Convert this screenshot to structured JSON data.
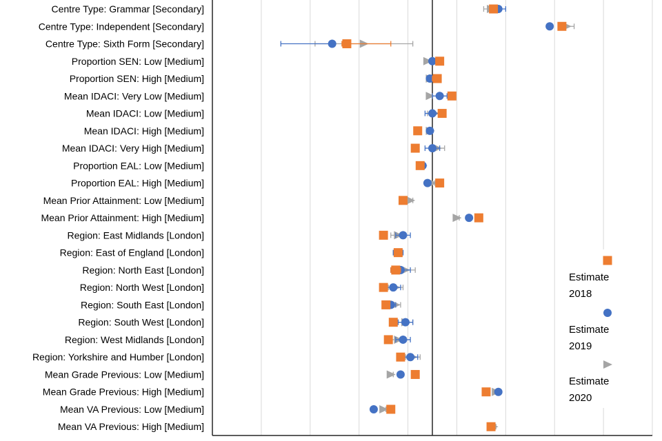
{
  "chart_data": {
    "type": "scatter",
    "orientation": "horizontal",
    "title": "",
    "xlabel": "",
    "ylabel": "",
    "xlim": [
      -0.09,
      0.09
    ],
    "grid": true,
    "reference_line_x": 0,
    "legend_position": "right",
    "categories": [
      "Centre Type: Grammar [Secondary]",
      "Centre Type: Independent [Secondary]",
      "Centre Type: Sixth Form [Secondary]",
      "Proportion SEN: Low [Medium]",
      "Proportion SEN: High [Medium]",
      "Mean IDACI: Very Low [Medium]",
      "Mean IDACI: Low [Medium]",
      "Mean IDACI: High [Medium]",
      "Mean IDACI: Very High [Medium]",
      "Proportion EAL: Low [Medium]",
      "Proportion EAL: High [Medium]",
      "Mean Prior Attainment: Low [Medium]",
      "Mean Prior Attainment: High [Medium]",
      "Region: East Midlands [London]",
      "Region: East of England [London]",
      "Region: North East [London]",
      "Region: North West [London]",
      "Region: South East [London]",
      "Region: South West [London]",
      "Region: West Midlands [London]",
      "Region: Yorkshire and Humber [London]",
      "Mean Grade Previous: Low [Medium]",
      "Mean Grade Previous: High [Medium]",
      "Mean VA Previous: Low [Medium]",
      "Mean VA Previous: High [Medium]"
    ],
    "series": [
      {
        "name": "Estimate 2018",
        "marker": "square",
        "color": "#ED7D31",
        "values": [
          0.025,
          0.053,
          -0.035,
          0.003,
          0.002,
          0.008,
          0.004,
          -0.006,
          -0.007,
          -0.005,
          0.003,
          -0.012,
          0.019,
          -0.02,
          -0.014,
          -0.015,
          -0.02,
          -0.019,
          -0.016,
          -0.018,
          -0.013,
          -0.007,
          0.022,
          -0.017,
          0.024
        ],
        "error_low": [
          0.0235,
          0.0515,
          -0.037,
          0.002,
          0.0,
          0.007,
          0.003,
          -0.007,
          -0.008,
          -0.006,
          0.002,
          -0.013,
          0.018,
          -0.0205,
          -0.015,
          -0.017,
          -0.021,
          -0.0195,
          -0.017,
          -0.019,
          -0.0135,
          -0.008,
          0.021,
          -0.018,
          0.023
        ],
        "error_high": [
          0.0265,
          0.0545,
          -0.017,
          0.004,
          0.003,
          0.009,
          0.005,
          -0.005,
          -0.006,
          -0.004,
          0.004,
          -0.011,
          0.02,
          -0.0195,
          -0.013,
          -0.013,
          -0.019,
          -0.0185,
          -0.015,
          -0.017,
          -0.0125,
          -0.006,
          0.023,
          -0.016,
          0.025
        ]
      },
      {
        "name": "Estimate 2019",
        "marker": "circle",
        "color": "#4472C4",
        "values": [
          0.027,
          0.048,
          -0.041,
          0.0,
          -0.001,
          0.003,
          0.0,
          -0.001,
          0.0,
          -0.004,
          -0.002,
          -0.012,
          0.015,
          -0.012,
          -0.014,
          -0.013,
          -0.016,
          -0.017,
          -0.011,
          -0.012,
          -0.009,
          -0.013,
          0.027,
          -0.024,
          0.024
        ],
        "error_low": [
          0.024,
          0.047,
          -0.062,
          -0.001,
          -0.002,
          0.0,
          -0.003,
          -0.002,
          -0.003,
          -0.005,
          -0.003,
          -0.013,
          0.014,
          -0.015,
          -0.016,
          -0.017,
          -0.019,
          -0.019,
          -0.014,
          -0.015,
          -0.012,
          -0.014,
          0.026,
          -0.025,
          0.023
        ],
        "error_high": [
          0.03,
          0.049,
          -0.04,
          0.001,
          0.0,
          0.006,
          0.003,
          0.0,
          0.003,
          -0.003,
          -0.001,
          -0.011,
          0.016,
          -0.009,
          -0.012,
          -0.009,
          -0.013,
          -0.015,
          -0.008,
          -0.009,
          -0.006,
          -0.012,
          0.028,
          -0.023,
          0.025
        ]
      },
      {
        "name": "Estimate 2020",
        "marker": "triangle",
        "color": "#A5A5A5",
        "values": [
          0.024,
          0.055,
          -0.028,
          -0.002,
          -0.001,
          -0.001,
          0.001,
          -0.001,
          0.002,
          -0.004,
          0.0,
          -0.009,
          0.01,
          -0.014,
          -0.014,
          -0.011,
          -0.015,
          -0.015,
          -0.011,
          -0.014,
          -0.008,
          -0.017,
          0.026,
          -0.02,
          0.025
        ],
        "error_low": [
          0.021,
          0.054,
          -0.048,
          -0.003,
          -0.002,
          -0.002,
          -0.002,
          -0.002,
          -0.001,
          -0.005,
          -0.001,
          -0.01,
          0.009,
          -0.017,
          -0.016,
          -0.015,
          -0.018,
          -0.017,
          -0.014,
          -0.017,
          -0.011,
          -0.018,
          0.025,
          -0.021,
          0.024
        ],
        "error_high": [
          0.027,
          0.058,
          -0.008,
          -0.001,
          0.0,
          0.0,
          0.004,
          0.0,
          0.005,
          -0.003,
          0.001,
          -0.008,
          0.011,
          -0.011,
          -0.012,
          -0.007,
          -0.012,
          -0.013,
          -0.008,
          -0.011,
          -0.005,
          -0.016,
          0.027,
          -0.019,
          0.026
        ]
      }
    ],
    "legend": {
      "entries": [
        {
          "line1": "Estimate",
          "line2": "2018"
        },
        {
          "line1": "Estimate",
          "line2": "2019"
        },
        {
          "line1": "Estimate",
          "line2": "2020"
        }
      ]
    }
  }
}
